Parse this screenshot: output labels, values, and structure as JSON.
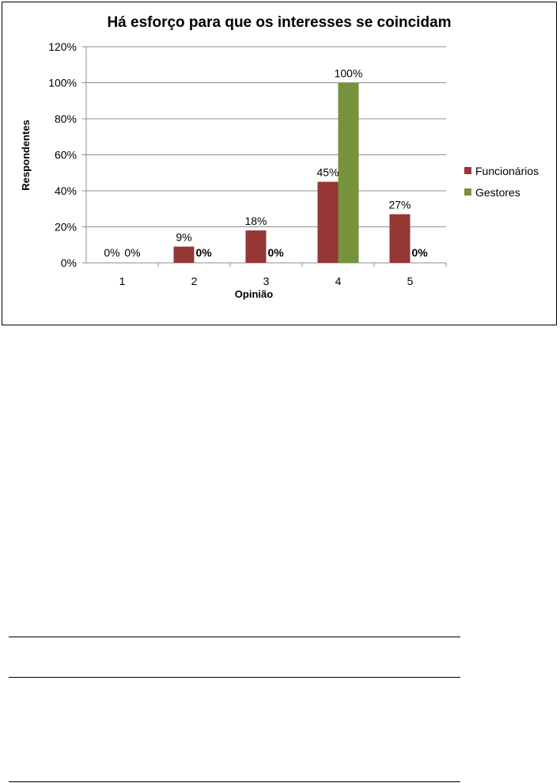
{
  "chart_data": {
    "type": "bar",
    "title": "Há esforço para que os interesses se coincidam",
    "xlabel": "Opinião",
    "ylabel": "Respondentes",
    "categories": [
      "1",
      "2",
      "3",
      "4",
      "5"
    ],
    "ylim": [
      0,
      120
    ],
    "yticks": [
      "0%",
      "20%",
      "40%",
      "60%",
      "80%",
      "100%",
      "120%"
    ],
    "ytick_values": [
      0,
      20,
      40,
      60,
      80,
      100,
      120
    ],
    "grid": true,
    "legend_position": "right",
    "series": [
      {
        "name": "Funcionários",
        "color": "#953735",
        "values": [
          0,
          9,
          18,
          45,
          27
        ],
        "labels": [
          "0%",
          "9%",
          "18%",
          "45%",
          "27%"
        ]
      },
      {
        "name": "Gestores",
        "color": "#77933C",
        "values": [
          0,
          0,
          0,
          100,
          0
        ],
        "labels": [
          "0%",
          "0%",
          "0%",
          "100%",
          "0%"
        ]
      }
    ]
  }
}
